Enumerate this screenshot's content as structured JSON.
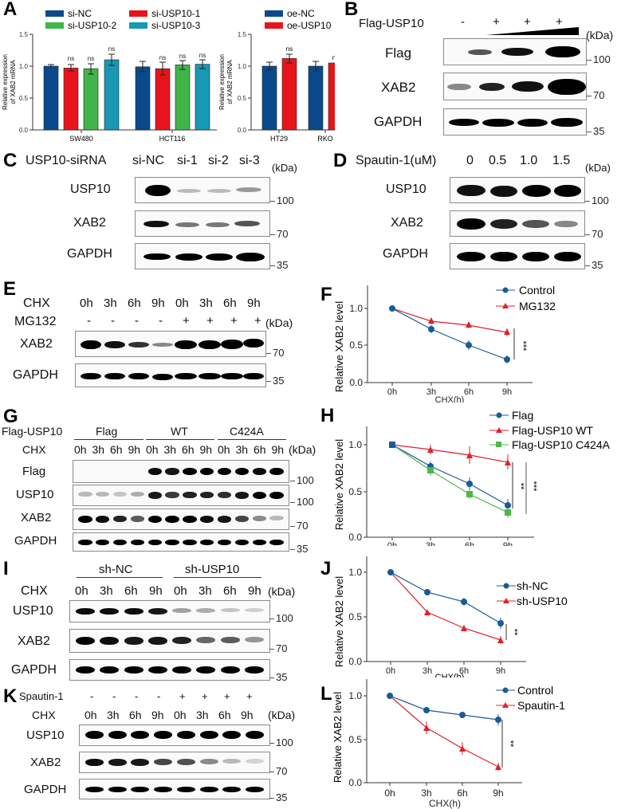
{
  "panels": {
    "A": {
      "letter": "A",
      "left_chart": {
        "legend": [
          "si-NC",
          "si-USP10-1",
          "si-USP10-2",
          "si-USP10-3"
        ],
        "ylabel_line1": "Relative expression",
        "ylabel_line2": "of XAB2 mRNA",
        "yticks": [
          "0.0",
          "0.5",
          "1.0",
          "1.5"
        ],
        "groups": [
          "SW480",
          "HCT116"
        ],
        "sig": "ns"
      },
      "right_chart": {
        "legend": [
          "oe-NC",
          "oe-USP10"
        ],
        "ylabel_line1": "Relative expression",
        "ylabel_line2": "of XAB2 mRNA",
        "yticks": [
          "0.0",
          "0.5",
          "1.0",
          "1.5"
        ],
        "groups": [
          "HT29",
          "RKO"
        ],
        "sig": "ns"
      }
    },
    "B": {
      "letter": "B",
      "condition_label": "Flag-USP10",
      "lanes": [
        "-",
        "+",
        "+",
        "+"
      ],
      "kda_label": "(kDa)",
      "rows": [
        {
          "label": "Flag",
          "kda": "100"
        },
        {
          "label": "XAB2",
          "kda": "70"
        },
        {
          "label": "GAPDH",
          "kda": "35"
        }
      ]
    },
    "C": {
      "letter": "C",
      "condition_label": "USP10-siRNA",
      "lanes": [
        "si-NC",
        "si-1",
        "si-2",
        "si-3"
      ],
      "kda_label": "(kDa)",
      "rows": [
        {
          "label": "USP10",
          "kda": "100"
        },
        {
          "label": "XAB2",
          "kda": "70"
        },
        {
          "label": "GAPDH",
          "kda": "35"
        }
      ]
    },
    "D": {
      "letter": "D",
      "condition_label": "Spautin-1(uM)",
      "lanes": [
        "0",
        "0.5",
        "1.0",
        "1.5"
      ],
      "kda_label": "(kDa)",
      "rows": [
        {
          "label": "USP10",
          "kda": "100"
        },
        {
          "label": "XAB2",
          "kda": "70"
        },
        {
          "label": "GAPDH",
          "kda": "35"
        }
      ]
    },
    "E": {
      "letter": "E",
      "chx_label": "CHX",
      "chx_lanes": [
        "0h",
        "3h",
        "6h",
        "9h",
        "0h",
        "3h",
        "6h",
        "9h"
      ],
      "treat_label": "MG132",
      "treat_lanes": [
        "-",
        "-",
        "-",
        "-",
        "+",
        "+",
        "+",
        "+"
      ],
      "kda_label": "(kDa)",
      "rows": [
        {
          "label": "XAB2",
          "kda": "70"
        },
        {
          "label": "GAPDH",
          "kda": "35"
        }
      ]
    },
    "F": {
      "letter": "F"
    },
    "G": {
      "letter": "G",
      "condition_label": "Flag-USP10",
      "groups": [
        "Flag",
        "WT",
        "C424A"
      ],
      "chx_label": "CHX",
      "chx_lanes": [
        "0h",
        "3h",
        "6h",
        "9h",
        "0h",
        "3h",
        "6h",
        "9h",
        "0h",
        "3h",
        "6h",
        "9h"
      ],
      "kda_label": "(kDa)",
      "rows": [
        {
          "label": "Flag",
          "kda": "100"
        },
        {
          "label": "USP10",
          "kda": "100"
        },
        {
          "label": "XAB2",
          "kda": "70"
        },
        {
          "label": "GAPDH",
          "kda": "35"
        }
      ]
    },
    "H": {
      "letter": "H"
    },
    "I": {
      "letter": "I",
      "groups": [
        "sh-NC",
        "sh-USP10"
      ],
      "chx_label": "CHX",
      "chx_lanes": [
        "0h",
        "3h",
        "6h",
        "9h",
        "0h",
        "3h",
        "6h",
        "9h"
      ],
      "kda_label": "(kDa)",
      "rows": [
        {
          "label": "USP10",
          "kda": "100"
        },
        {
          "label": "XAB2",
          "kda": "70"
        },
        {
          "label": "GAPDH",
          "kda": "35"
        }
      ]
    },
    "J": {
      "letter": "J"
    },
    "K": {
      "letter": "K",
      "treat_label": "Spautin-1",
      "treat_lanes": [
        "-",
        "-",
        "-",
        "-",
        "+",
        "+",
        "+",
        "+"
      ],
      "chx_label": "CHX",
      "chx_lanes": [
        "0h",
        "3h",
        "6h",
        "9h",
        "0h",
        "3h",
        "6h",
        "9h"
      ],
      "kda_label": "(kDa)",
      "rows": [
        {
          "label": "USP10",
          "kda": "100"
        },
        {
          "label": "XAB2",
          "kda": "70"
        },
        {
          "label": "GAPDH",
          "kda": "35"
        }
      ]
    },
    "L": {
      "letter": "L"
    }
  },
  "colors": {
    "navy": "#0a4a8c",
    "red": "#e8141c",
    "green": "#3fb54a",
    "teal": "#1798b4",
    "line_blue": "#1a5a9a",
    "line_red": "#e0202a",
    "line_green": "#4cb848"
  },
  "chart_data": [
    {
      "panel": "A-left",
      "type": "bar",
      "title": "",
      "xlabel": "",
      "ylabel": "Relative expression of XAB2 mRNA",
      "ylim": [
        0,
        1.5
      ],
      "categories": [
        "SW480",
        "HCT116"
      ],
      "series": [
        {
          "name": "si-NC",
          "values": [
            1.0,
            0.99
          ],
          "errors": [
            0.02,
            0.08
          ]
        },
        {
          "name": "si-USP10-1",
          "values": [
            0.97,
            0.96
          ],
          "errors": [
            0.05,
            0.1
          ]
        },
        {
          "name": "si-USP10-2",
          "values": [
            0.96,
            1.02
          ],
          "errors": [
            0.08,
            0.06
          ]
        },
        {
          "name": "si-USP10-3",
          "values": [
            1.1,
            1.03
          ],
          "errors": [
            0.08,
            0.06
          ]
        }
      ],
      "annotations": [
        "ns",
        "ns",
        "ns",
        "ns",
        "ns",
        "ns"
      ]
    },
    {
      "panel": "A-right",
      "type": "bar",
      "title": "",
      "xlabel": "",
      "ylabel": "Relative expression of XAB2 mRNA",
      "ylim": [
        0,
        1.5
      ],
      "categories": [
        "HT29",
        "RKO"
      ],
      "series": [
        {
          "name": "oe-NC",
          "values": [
            1.0,
            1.0
          ],
          "errors": [
            0.06,
            0.07
          ]
        },
        {
          "name": "oe-USP10",
          "values": [
            1.12,
            1.05
          ],
          "errors": [
            0.07,
            0.05
          ]
        }
      ],
      "annotations": [
        "ns",
        "ns"
      ]
    },
    {
      "panel": "F",
      "type": "line",
      "xlabel": "CHX(h)",
      "ylabel": "Relative XAB2 level",
      "x": [
        "0h",
        "3h",
        "6h",
        "9h"
      ],
      "yticks": [
        "0.0",
        "0.5",
        "1.0"
      ],
      "ylim": [
        0,
        1.25
      ],
      "series": [
        {
          "name": "Control",
          "values": [
            1.0,
            0.72,
            0.51,
            0.31
          ],
          "errors": [
            0.01,
            0.05,
            0.06,
            0.05
          ],
          "marker": "circle"
        },
        {
          "name": "MG132",
          "values": [
            1.0,
            0.91,
            0.85,
            0.75
          ],
          "errors": [
            0.01,
            0.04,
            0.04,
            0.05
          ],
          "marker": "triangle"
        }
      ],
      "significance": "***",
      "legend_position": "upper right"
    },
    {
      "panel": "H",
      "type": "line",
      "xlabel": "CHX(h)",
      "ylabel": "Relative XAB2 level",
      "x": [
        "0h",
        "3h",
        "6h",
        "9h"
      ],
      "yticks": [
        "0.0",
        "0.5",
        "1.0"
      ],
      "ylim": [
        0,
        1.2
      ],
      "series": [
        {
          "name": "Flag",
          "values": [
            1.0,
            0.77,
            0.59,
            0.35
          ],
          "errors": [
            0.01,
            0.05,
            0.07,
            0.07
          ],
          "marker": "circle"
        },
        {
          "name": "Flag-USP10 WT",
          "values": [
            1.0,
            0.95,
            0.89,
            0.82
          ],
          "errors": [
            0.01,
            0.05,
            0.1,
            0.08
          ],
          "marker": "triangle"
        },
        {
          "name": "Flag-USP10 C424A",
          "values": [
            1.0,
            0.73,
            0.48,
            0.28
          ],
          "errors": [
            0.01,
            0.06,
            0.05,
            0.06
          ],
          "marker": "square"
        }
      ],
      "significance": [
        "**",
        "***"
      ],
      "legend_position": "upper right"
    },
    {
      "panel": "J",
      "type": "line",
      "xlabel": "CHX(h)",
      "ylabel": "Relative XAB2 level",
      "x": [
        "0h",
        "3h",
        "6h",
        "9h"
      ],
      "yticks": [
        "0.0",
        "0.5",
        "1.0"
      ],
      "ylim": [
        0,
        1.2
      ],
      "series": [
        {
          "name": "sh-NC",
          "values": [
            1.0,
            0.78,
            0.67,
            0.43
          ],
          "errors": [
            0.01,
            0.03,
            0.04,
            0.06
          ],
          "marker": "circle"
        },
        {
          "name": "sh-USP10",
          "values": [
            1.0,
            0.56,
            0.38,
            0.24
          ],
          "errors": [
            0.01,
            0.03,
            0.03,
            0.03
          ],
          "marker": "triangle"
        }
      ],
      "significance": "**",
      "legend_position": "upper right"
    },
    {
      "panel": "L",
      "type": "line",
      "xlabel": "CHX(h)",
      "ylabel": "Relative XAB2 level",
      "x": [
        "0h",
        "3h",
        "6h",
        "9h"
      ],
      "yticks": [
        "0.0",
        "0.5",
        "1.0"
      ],
      "ylim": [
        0,
        1.2
      ],
      "series": [
        {
          "name": "Control",
          "values": [
            1.0,
            0.84,
            0.79,
            0.73
          ],
          "errors": [
            0.01,
            0.03,
            0.03,
            0.06
          ],
          "marker": "circle"
        },
        {
          "name": "Spautin-1",
          "values": [
            1.0,
            0.65,
            0.4,
            0.19
          ],
          "errors": [
            0.01,
            0.07,
            0.07,
            0.04
          ],
          "marker": "triangle"
        }
      ],
      "significance": "**",
      "legend_position": "upper right"
    }
  ],
  "axis_common": {
    "xlabel": "CHX(h)",
    "ylabel": "Relative XAB2 level"
  }
}
